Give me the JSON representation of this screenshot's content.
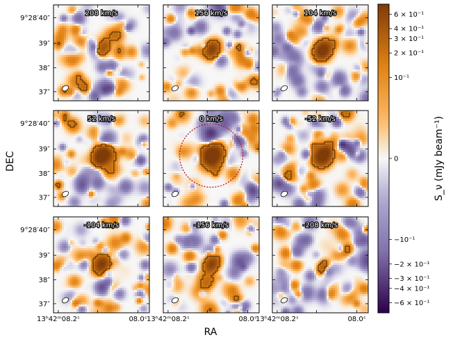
{
  "chart_data": {
    "type": "heatmap",
    "description_layout": "3x3 grid of channel maps",
    "xlabel": "RA",
    "ylabel": "DEC",
    "colorbar_label": "S_ν (mJy beam⁻¹)",
    "colorbar_scale": "symlog",
    "colorbar_ticks": [
      "6 × 10⁻¹",
      "4 × 10⁻¹",
      "3 × 10⁻¹",
      "2 × 10⁻¹",
      "10⁻¹",
      "0",
      "−10⁻¹",
      "−2 × 10⁻¹",
      "−3 × 10⁻¹",
      "−4 × 10⁻¹",
      "−6 × 10⁻¹"
    ],
    "colorbar_tick_values": [
      0.6,
      0.4,
      0.3,
      0.2,
      0.1,
      0,
      -0.1,
      -0.2,
      -0.3,
      -0.4,
      -0.6
    ],
    "colorbar_range": [
      -0.8,
      0.8
    ],
    "x_tick_labels": [
      "13ʰ42ᵐ08.2ˢ",
      "08.0ˢ"
    ],
    "y_tick_labels": [
      "9°28′40″",
      "39″",
      "38″",
      "37″"
    ],
    "panels": [
      {
        "velocity": "208 km/s",
        "peak": 0.28,
        "source_center": [
          0.52,
          0.42
        ],
        "extent": 0.9
      },
      {
        "velocity": "156 km/s",
        "peak": 0.4,
        "source_center": [
          0.5,
          0.44
        ],
        "extent": 1.0
      },
      {
        "velocity": "104 km/s",
        "peak": 0.62,
        "source_center": [
          0.52,
          0.45
        ],
        "extent": 1.1
      },
      {
        "velocity": "52 km/s",
        "peak": 0.78,
        "source_center": [
          0.5,
          0.45
        ],
        "extent": 1.1
      },
      {
        "velocity": "0 km/s",
        "peak": 0.7,
        "source_center": [
          0.5,
          0.45
        ],
        "extent": 1.4,
        "aperture_circle": true
      },
      {
        "velocity": "-52 km/s",
        "peak": 0.65,
        "source_center": [
          0.52,
          0.45
        ],
        "extent": 1.2
      },
      {
        "velocity": "-104 km/s",
        "peak": 0.5,
        "source_center": [
          0.5,
          0.47
        ],
        "extent": 1.1
      },
      {
        "velocity": "-156 km/s",
        "peak": 0.45,
        "source_center": [
          0.5,
          0.47
        ],
        "extent": 1.0
      },
      {
        "velocity": "-208 km/s",
        "peak": 0.25,
        "source_center": [
          0.52,
          0.5
        ],
        "extent": 0.7
      }
    ],
    "colors": {
      "positive_dark": "#7f3b08",
      "positive_mid": "#e08214",
      "positive_light": "#fdb863",
      "neutral": "#f7f7f7",
      "negative_light": "#b2abd2",
      "negative_mid": "#8073ac",
      "negative_dark": "#2d004b",
      "aperture": "#b2182b"
    }
  }
}
